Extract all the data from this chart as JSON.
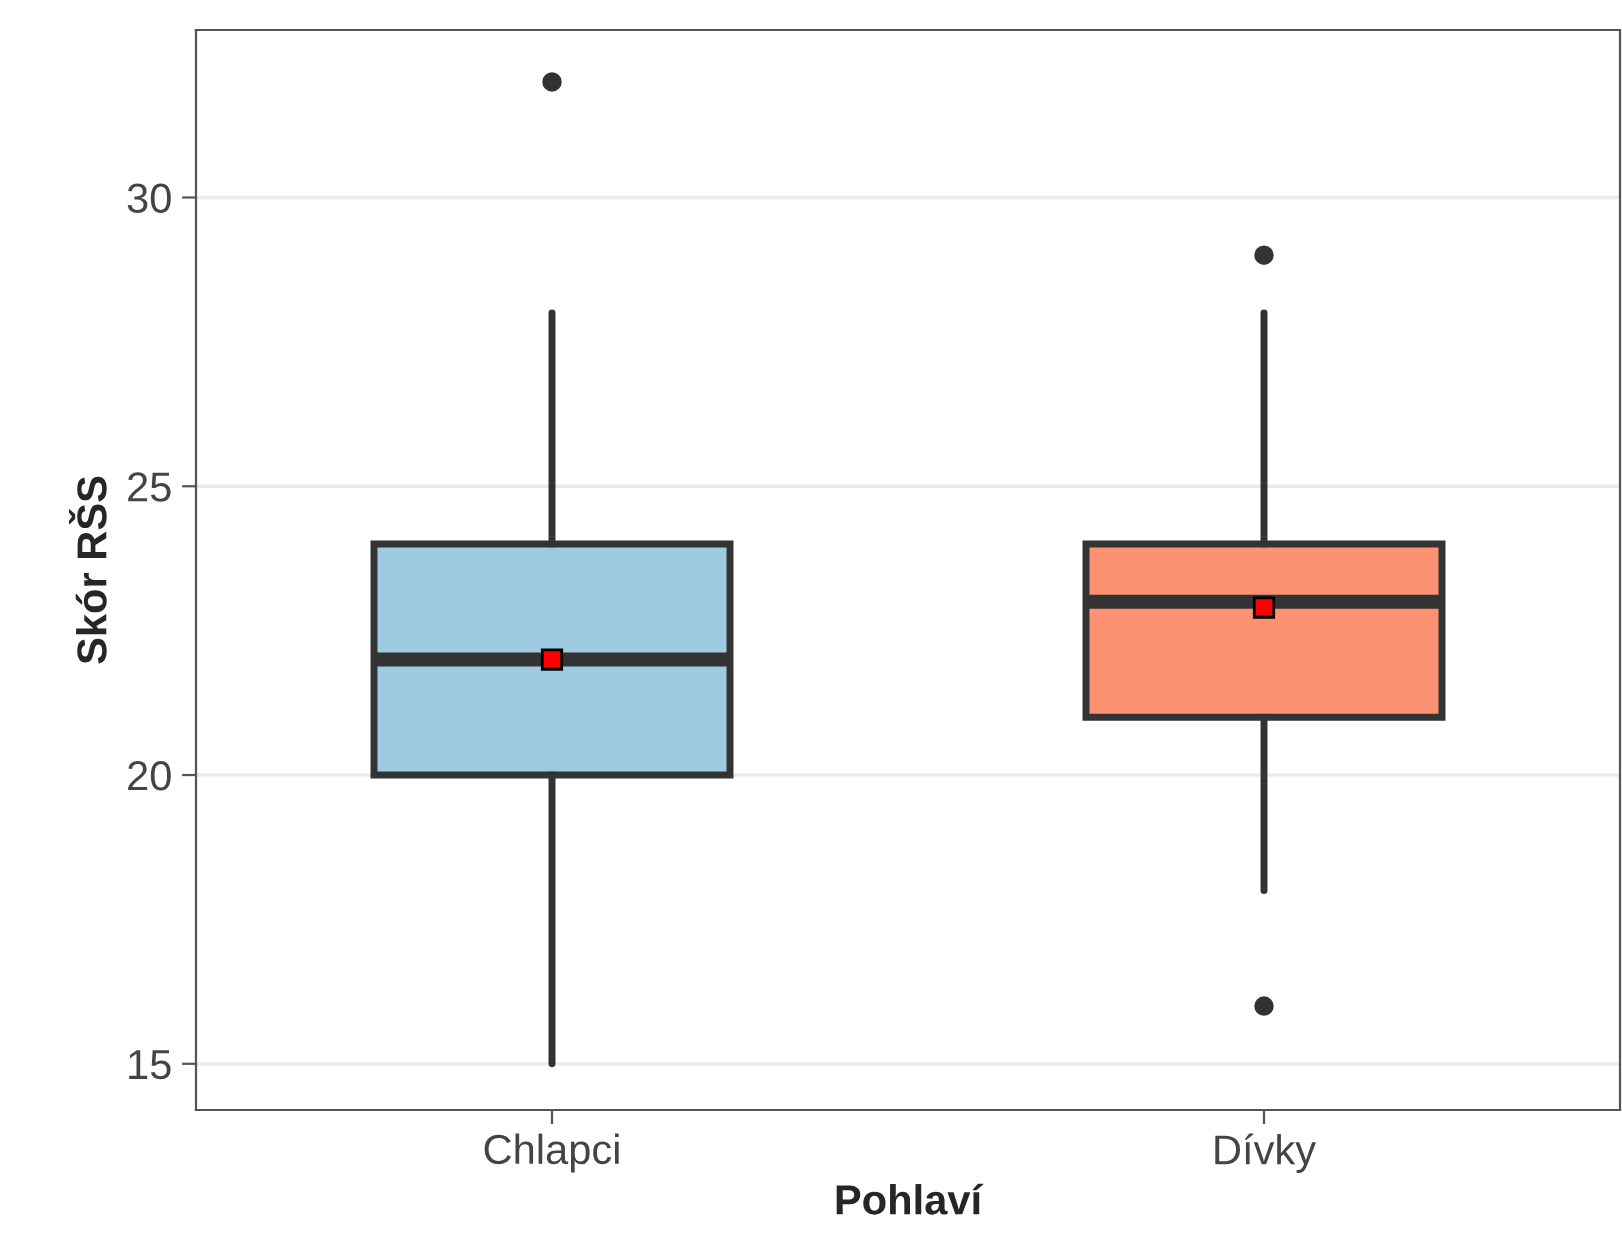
{
  "chart_data": {
    "type": "box",
    "xlabel": "Pohlaví",
    "ylabel": "Skór RŠS",
    "categories": [
      "Chlapci",
      "Dívky"
    ],
    "series": [
      {
        "boxes": [
          {
            "low": 15,
            "q1": 20,
            "median": 22,
            "q3": 24,
            "high": 28,
            "mean": 22.0,
            "outliers": [
              32
            ]
          },
          {
            "low": 18,
            "q1": 21,
            "median": 23,
            "q3": 24,
            "high": 28,
            "mean": 22.9,
            "outliers": [
              16,
              29
            ]
          }
        ],
        "colors": [
          "#9ecae1",
          "#fc9272"
        ]
      }
    ],
    "ylim": [
      14.2,
      32.9
    ],
    "yticks": [
      15,
      20,
      25,
      30
    ],
    "grid": "y",
    "legend": false
  }
}
